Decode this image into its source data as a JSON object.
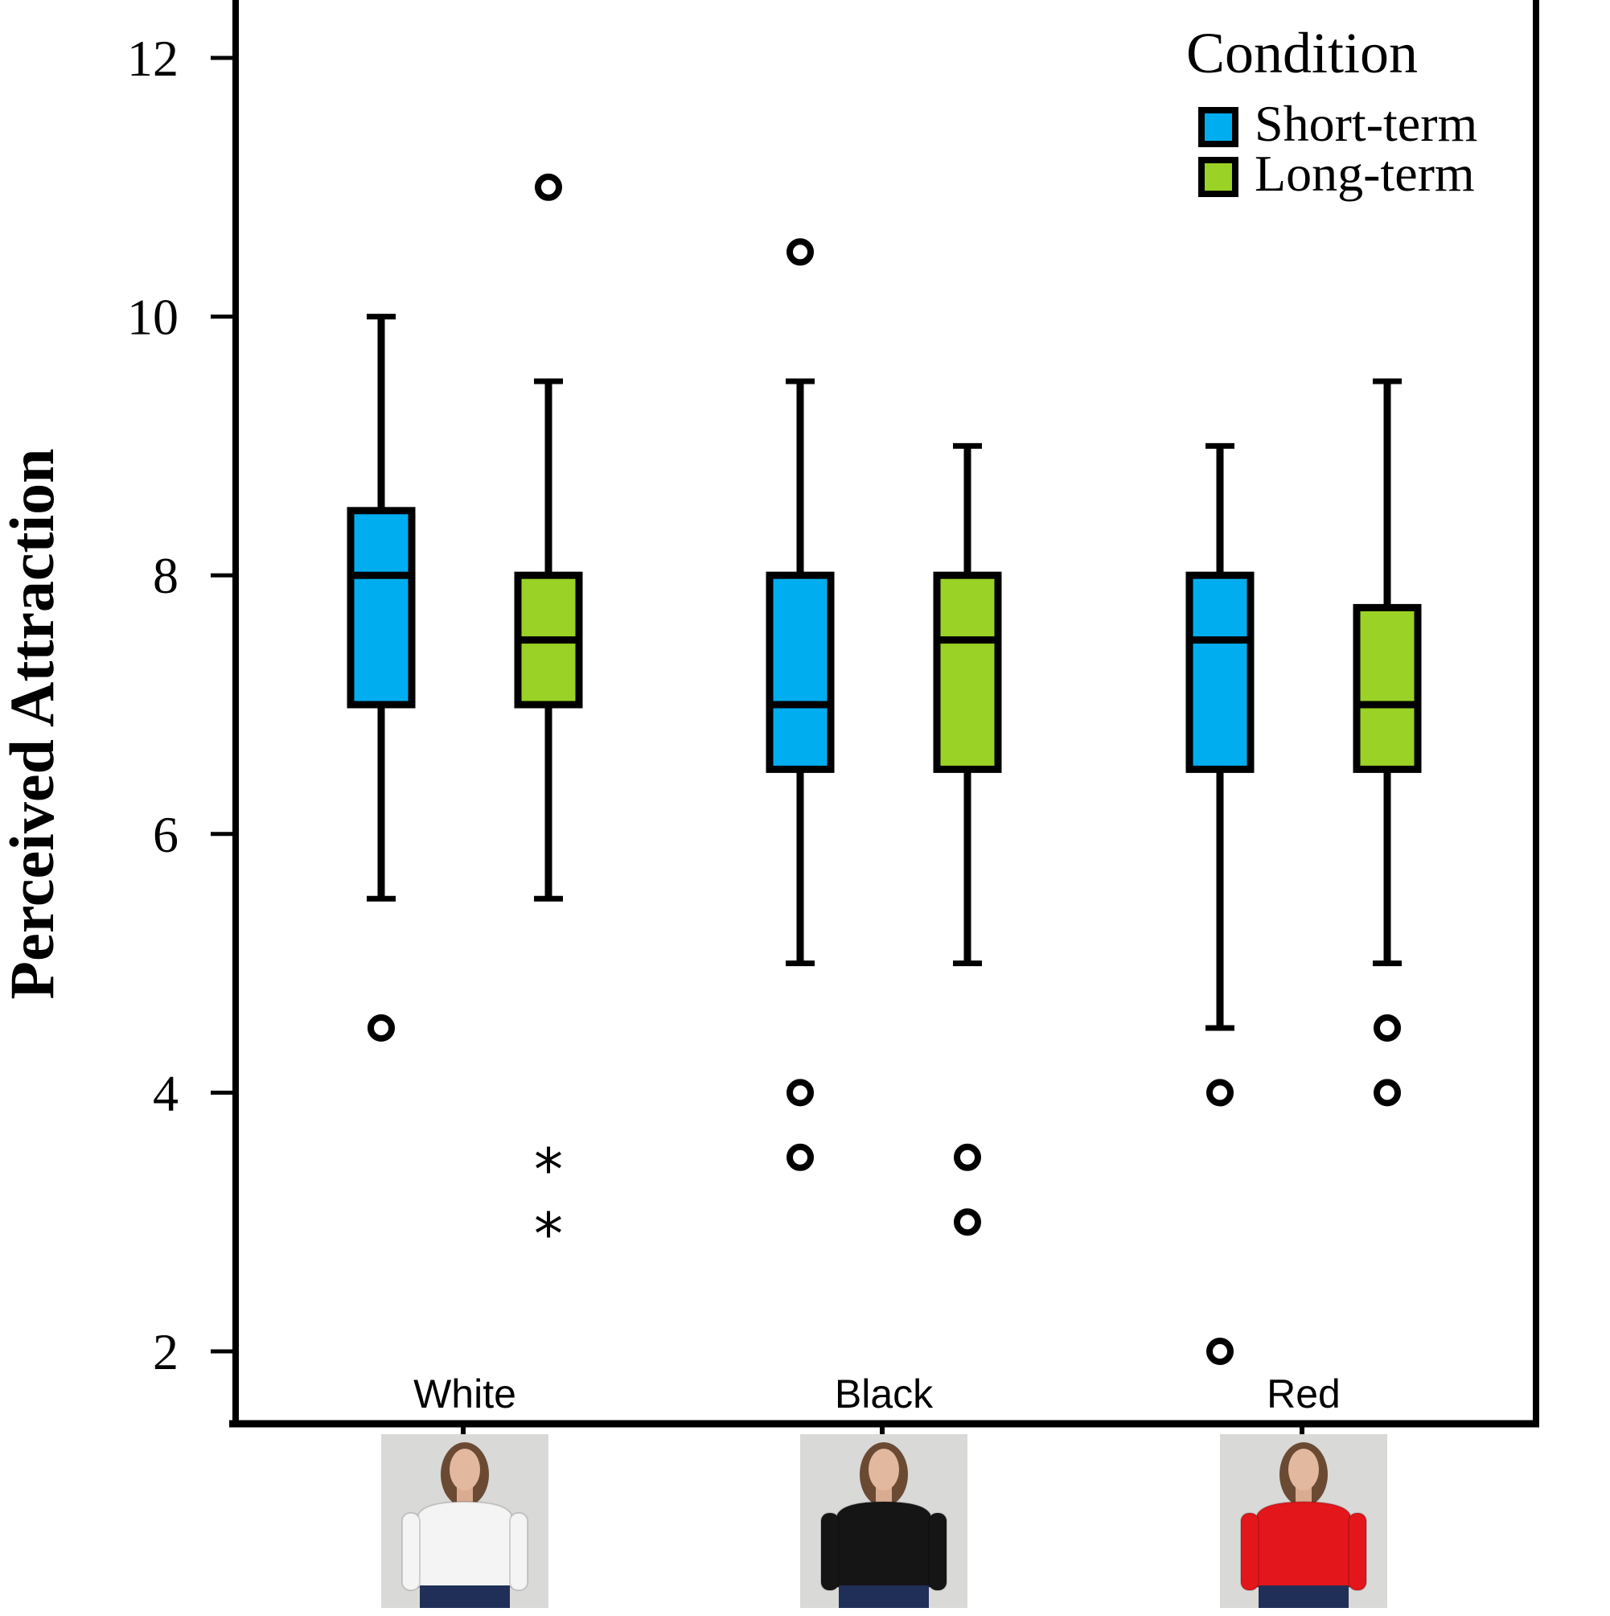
{
  "chart_data": {
    "type": "box",
    "title": "",
    "xlabel": "",
    "ylabel": "Perceived Attraction",
    "ylim": [
      1.5,
      12.5
    ],
    "yticks": [
      2,
      4,
      6,
      8,
      10,
      12
    ],
    "categories": [
      "White",
      "Black",
      "Red"
    ],
    "legend": {
      "title": "Condition",
      "position": "top-right",
      "entries": [
        "Short-term",
        "Long-term"
      ]
    },
    "series": [
      {
        "name": "Short-term",
        "color": "#00aeef",
        "boxes": [
          {
            "category": "White",
            "whisker_low": 5.5,
            "q1": 7.0,
            "median": 8.0,
            "q3": 8.5,
            "whisker_high": 10.0,
            "outliers": [
              4.5
            ],
            "extremes": []
          },
          {
            "category": "Black",
            "whisker_low": 5.0,
            "q1": 6.5,
            "median": 7.0,
            "q3": 8.0,
            "whisker_high": 9.5,
            "outliers": [
              10.5,
              4.0,
              3.5
            ],
            "extremes": []
          },
          {
            "category": "Red",
            "whisker_low": 4.5,
            "q1": 6.5,
            "median": 7.5,
            "q3": 8.0,
            "whisker_high": 9.0,
            "outliers": [
              4.0,
              2.0
            ],
            "extremes": []
          }
        ]
      },
      {
        "name": "Long-term",
        "color": "#9ad225",
        "boxes": [
          {
            "category": "White",
            "whisker_low": 5.5,
            "q1": 7.0,
            "median": 7.5,
            "q3": 8.0,
            "whisker_high": 9.5,
            "outliers": [
              11.0
            ],
            "extremes": [
              3.5,
              3.0
            ]
          },
          {
            "category": "Black",
            "whisker_low": 5.0,
            "q1": 6.5,
            "median": 7.5,
            "q3": 8.0,
            "whisker_high": 9.0,
            "outliers": [
              3.5,
              3.0
            ],
            "extremes": []
          },
          {
            "category": "Red",
            "whisker_low": 5.0,
            "q1": 6.5,
            "median": 7.0,
            "q3": 7.75,
            "whisker_high": 9.5,
            "outliers": [
              4.5,
              4.0
            ],
            "extremes": []
          }
        ]
      }
    ],
    "category_images": [
      {
        "category": "White",
        "sweater_color": "#f4f4f4"
      },
      {
        "category": "Black",
        "sweater_color": "#151515"
      },
      {
        "category": "Red",
        "sweater_color": "#e3161b"
      }
    ]
  }
}
